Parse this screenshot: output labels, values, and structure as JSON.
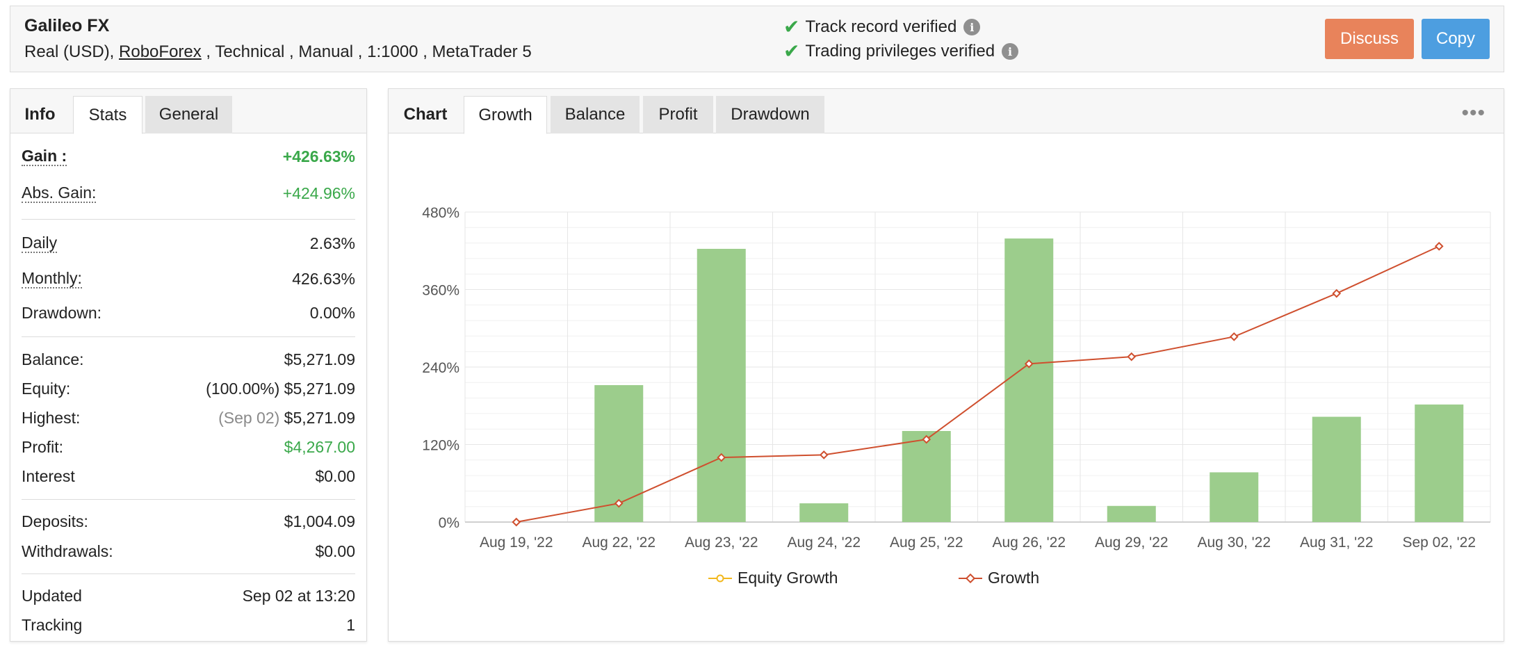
{
  "header": {
    "account_name": "Galileo FX",
    "meta_prefix": "Real (USD), ",
    "broker": "RoboForex",
    "meta_suffix": " , Technical , Manual , 1:1000 , MetaTrader 5",
    "verifications": [
      "Track record verified",
      "Trading privileges verified"
    ],
    "discuss_label": "Discuss",
    "copy_label": "Copy"
  },
  "left_tabs": [
    "Info",
    "Stats",
    "General"
  ],
  "stats": {
    "gain_label": "Gain :",
    "gain_value": "+426.63%",
    "abs_gain_label": "Abs. Gain:",
    "abs_gain_value": "+424.96%",
    "daily_label": "Daily",
    "daily_value": "2.63%",
    "monthly_label": "Monthly:",
    "monthly_value": "426.63%",
    "drawdown_label": "Drawdown:",
    "drawdown_value": "0.00%",
    "balance_label": "Balance:",
    "balance_value": "$5,271.09",
    "equity_label": "Equity:",
    "equity_pct": "(100.00%)",
    "equity_value": "$5,271.09",
    "highest_label": "Highest:",
    "highest_date": "(Sep 02)",
    "highest_value": "$5,271.09",
    "profit_label": "Profit:",
    "profit_value": "$4,267.00",
    "interest_label": "Interest",
    "interest_value": "$0.00",
    "deposits_label": "Deposits:",
    "deposits_value": "$1,004.09",
    "withdrawals_label": "Withdrawals:",
    "withdrawals_value": "$0.00",
    "updated_label": "Updated",
    "updated_value": "Sep 02 at 13:20",
    "tracking_label": "Tracking",
    "tracking_value": "1"
  },
  "chart_tabs": [
    "Chart",
    "Growth",
    "Balance",
    "Profit",
    "Drawdown"
  ],
  "colors": {
    "bar": "#9ccd8c",
    "growth_line": "#cf4f2e",
    "equity_line": "#f2b81d",
    "grid": "#e6e6e6"
  },
  "chart_data": {
    "type": "bar",
    "categories": [
      "Aug 19, '22",
      "Aug 22, '22",
      "Aug 23, '22",
      "Aug 24, '22",
      "Aug 25, '22",
      "Aug 26, '22",
      "Aug 29, '22",
      "Aug 30, '22",
      "Aug 31, '22",
      "Sep 02, '22"
    ],
    "y_ticks": [
      "0%",
      "120%",
      "240%",
      "360%",
      "480%"
    ],
    "ylim": [
      0,
      480
    ],
    "grid": true,
    "legend_position": "bottom",
    "legend": [
      "Equity Growth",
      "Growth"
    ],
    "series": [
      {
        "name": "",
        "type": "bar",
        "values": [
          0,
          212,
          423,
          29,
          141,
          439,
          25,
          77,
          163,
          182
        ]
      },
      {
        "name": "Growth",
        "type": "line",
        "values": [
          0,
          29,
          100,
          104,
          128,
          245,
          256,
          287,
          354,
          427
        ]
      }
    ]
  }
}
